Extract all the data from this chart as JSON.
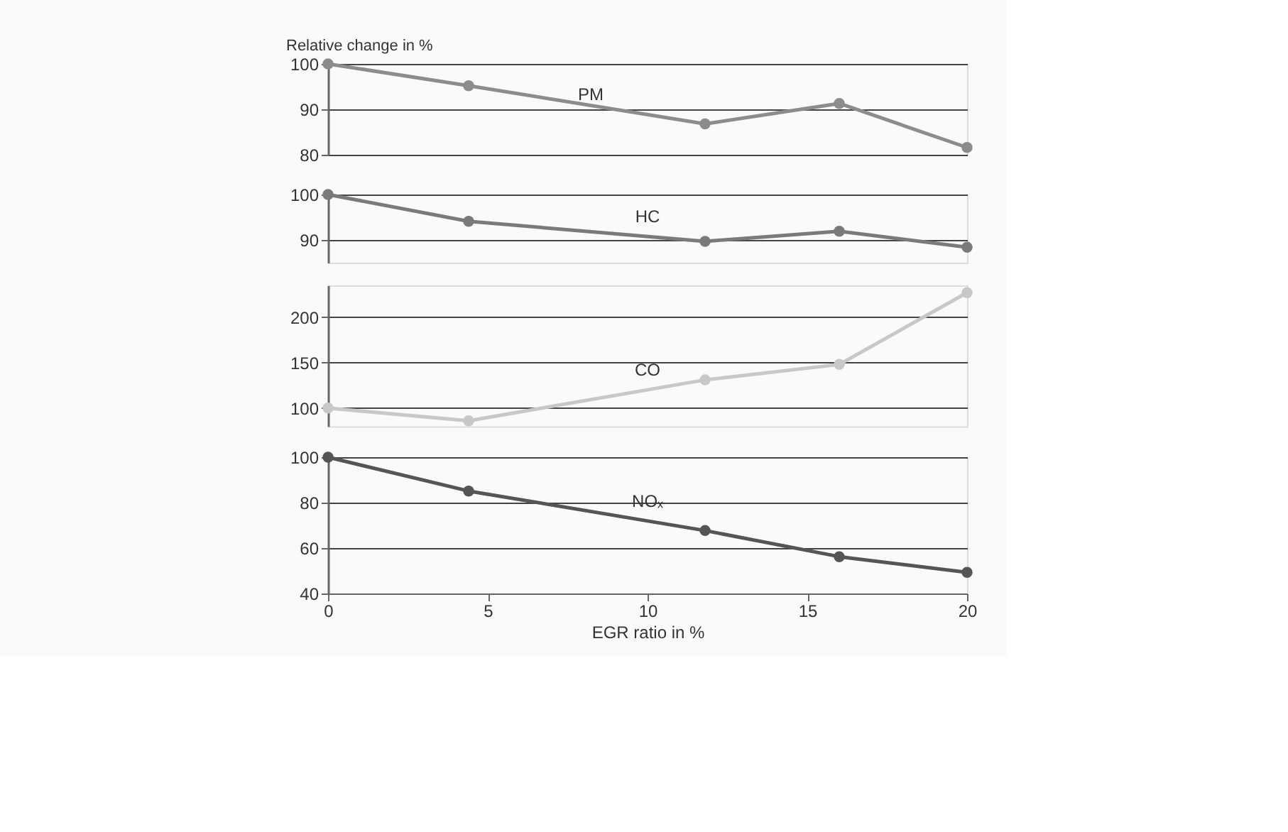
{
  "chart_data": [
    {
      "type": "line",
      "ylabel": "Relative change in %",
      "xlim": [
        0,
        20
      ],
      "ylim": [
        80,
        100
      ],
      "yticks": [
        80,
        90,
        100
      ],
      "tick_labels": "y",
      "grid": "y",
      "marker": "circle",
      "line_style": "solid",
      "series": [
        {
          "name": "PM",
          "color": "#8c8c8c",
          "x": [
            0,
            4.4,
            11.8,
            16,
            20
          ],
          "values": [
            100,
            95.2,
            86.8,
            91.3,
            81.6
          ]
        }
      ]
    },
    {
      "type": "line",
      "xlim": [
        0,
        20
      ],
      "ylim": [
        85,
        100
      ],
      "yticks": [
        90,
        100
      ],
      "tick_labels": "y",
      "grid": "y",
      "marker": "circle",
      "line_style": "solid",
      "series": [
        {
          "name": "HC",
          "color": "#7a7a7a",
          "x": [
            0,
            4.4,
            11.8,
            16,
            20
          ],
          "values": [
            100,
            94.1,
            89.7,
            91.9,
            88.4
          ]
        }
      ]
    },
    {
      "type": "line",
      "xlim": [
        0,
        20
      ],
      "ylim": [
        80,
        235
      ],
      "yticks": [
        100,
        150,
        200
      ],
      "tick_labels": "y",
      "grid": "y",
      "marker": "circle",
      "line_style": "solid",
      "series": [
        {
          "name": "CO",
          "color": "#c8c8c8",
          "x": [
            0,
            4.4,
            11.8,
            16,
            20
          ],
          "values": [
            100,
            86,
            131,
            148,
            227
          ]
        }
      ]
    },
    {
      "type": "line",
      "xlabel": "EGR ratio in %",
      "xlim": [
        0,
        20
      ],
      "xticks": [
        0,
        5,
        10,
        15,
        20
      ],
      "ylim": [
        40,
        100
      ],
      "yticks": [
        40,
        60,
        80,
        100
      ],
      "grid": "y",
      "marker": "circle",
      "line_style": "solid",
      "series": [
        {
          "name": "NOₓ",
          "color": "#555555",
          "x": [
            0,
            4.4,
            11.8,
            16,
            20
          ],
          "values": [
            100,
            85.1,
            67.7,
            56.2,
            49.3
          ]
        }
      ]
    }
  ]
}
